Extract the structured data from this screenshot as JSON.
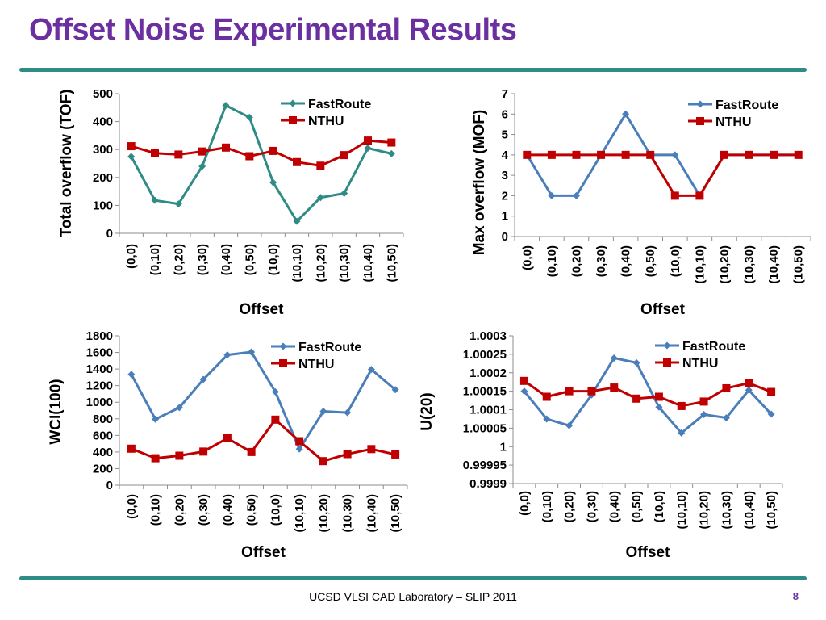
{
  "slide": {
    "title": "Offset Noise Experimental Results",
    "footer": "UCSD VLSI CAD Laboratory – SLIP 2011",
    "page_number": "8",
    "title_color": "#6b2fa0",
    "rule_color": "#2e8b86"
  },
  "chart_data": [
    {
      "type": "line",
      "categories": [
        "(0,0)",
        "(0,10)",
        "(0,20)",
        "(0,30)",
        "(0,40)",
        "(0,50)",
        "(10,0)",
        "(10,10)",
        "(10,20)",
        "(10,30)",
        "(10,40)",
        "(10,50)"
      ],
      "series": [
        {
          "name": "FastRoute",
          "color": "#2e8b86",
          "marker": "diamond",
          "values": [
            275,
            118,
            105,
            240,
            458,
            415,
            182,
            43,
            128,
            143,
            305,
            285
          ]
        },
        {
          "name": "NTHU",
          "color": "#c00000",
          "marker": "square",
          "values": [
            312,
            287,
            282,
            293,
            307,
            276,
            295,
            255,
            242,
            280,
            332,
            325
          ]
        }
      ],
      "xlabel": "Offset",
      "ylabel": "Total overflow (TOF)",
      "ylim": [
        0,
        500
      ],
      "yticks": [
        "0",
        "100",
        "200",
        "300",
        "400",
        "500"
      ],
      "legend": "top-right"
    },
    {
      "type": "line",
      "categories": [
        "(0,0)",
        "(0,10)",
        "(0,20)",
        "(0,30)",
        "(0,40)",
        "(0,50)",
        "(10,0)",
        "(10,10)",
        "(10,20)",
        "(10,30)",
        "(10,40)",
        "(10,50)"
      ],
      "series": [
        {
          "name": "FastRoute",
          "color": "#4a7ebb",
          "marker": "diamond",
          "values": [
            4,
            2,
            2,
            4,
            6,
            4,
            4,
            2,
            4,
            4,
            4,
            4
          ]
        },
        {
          "name": "NTHU",
          "color": "#c00000",
          "marker": "square",
          "values": [
            4,
            4,
            4,
            4,
            4,
            4,
            2,
            2,
            4,
            4,
            4,
            4
          ]
        }
      ],
      "xlabel": "Offset",
      "ylabel": "Max overflow (MOF)",
      "ylim": [
        0,
        7
      ],
      "yticks": [
        "0",
        "1",
        "2",
        "3",
        "4",
        "5",
        "6",
        "7"
      ],
      "legend": "top-right"
    },
    {
      "type": "line",
      "categories": [
        "(0,0)",
        "(0,10)",
        "(0,20)",
        "(0,30)",
        "(0,40)",
        "(0,50)",
        "(10,0)",
        "(10,10)",
        "(10,20)",
        "(10,30)",
        "(10,40)",
        "(10,50)"
      ],
      "series": [
        {
          "name": "FastRoute",
          "color": "#4a7ebb",
          "marker": "diamond",
          "values": [
            1335,
            795,
            935,
            1275,
            1570,
            1605,
            1125,
            435,
            890,
            875,
            1395,
            1150
          ]
        },
        {
          "name": "NTHU",
          "color": "#c00000",
          "marker": "square",
          "values": [
            440,
            325,
            355,
            405,
            565,
            400,
            790,
            530,
            290,
            375,
            435,
            370
          ]
        }
      ],
      "xlabel": "Offset",
      "ylabel": "WCI(100)",
      "ylim": [
        0,
        1800
      ],
      "yticks": [
        "0",
        "200",
        "400",
        "600",
        "800",
        "1000",
        "1200",
        "1400",
        "1600",
        "1800"
      ],
      "legend": "top-right"
    },
    {
      "type": "line",
      "categories": [
        "(0,0)",
        "(0,10)",
        "(0,20)",
        "(0,30)",
        "(0,40)",
        "(0,50)",
        "(10,0)",
        "(10,10)",
        "(10,20)",
        "(10,30)",
        "(10,40)",
        "(10,50)"
      ],
      "series": [
        {
          "name": "FastRoute",
          "color": "#4a7ebb",
          "marker": "diamond",
          "values": [
            1.00015,
            1.000075,
            1.000057,
            1.00014,
            1.00024,
            1.000227,
            1.000107,
            1.000037,
            1.000087,
            1.000078,
            1.000153,
            1.000088
          ]
        },
        {
          "name": "NTHU",
          "color": "#c00000",
          "marker": "square",
          "values": [
            1.000178,
            1.000135,
            1.00015,
            1.00015,
            1.00016,
            1.00013,
            1.000135,
            1.00011,
            1.000122,
            1.000158,
            1.000172,
            1.000148
          ]
        }
      ],
      "xlabel": "Offset",
      "ylabel": "U(20)",
      "ylim": [
        0.9999,
        1.0003
      ],
      "yticks": [
        "0.9999",
        "0.99995",
        "1",
        "1.00005",
        "1.0001",
        "1.00015",
        "1.0002",
        "1.00025",
        "1.0003"
      ],
      "legend": "top-right"
    }
  ]
}
